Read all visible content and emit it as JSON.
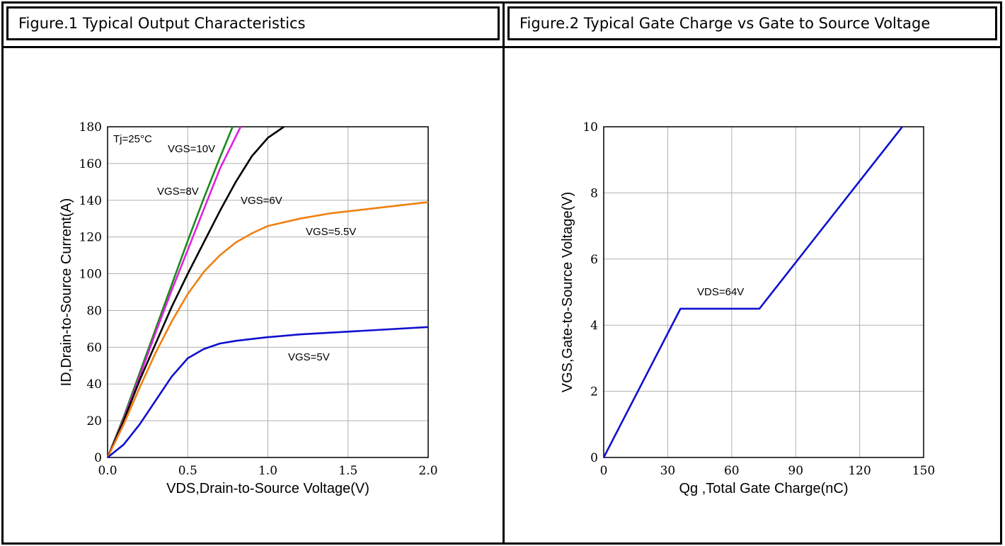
{
  "figures": [
    {
      "title": "Figure.1 Typical Output Characteristics"
    },
    {
      "title": "Figure.2 Typical Gate Charge vs Gate to Source Voltage"
    }
  ],
  "chart_data": [
    {
      "type": "line",
      "title": "Figure.1 Typical Output Characteristics",
      "xlabel": "VDS,Drain-to-Source Voltage(V)",
      "ylabel": "ID,Drain-to-Source Current(A)",
      "xlim": [
        0,
        2.0
      ],
      "ylim": [
        0,
        180
      ],
      "xticks": [
        "0.0",
        "0.5",
        "1.0",
        "1.5",
        "2.0"
      ],
      "yticks": [
        "0",
        "20",
        "40",
        "60",
        "80",
        "100",
        "120",
        "140",
        "160",
        "180"
      ],
      "grid": true,
      "annotations": [
        "Tj=25°C"
      ],
      "series": [
        {
          "name": "VGS=10V",
          "color": "#1a8a1a",
          "x": [
            0,
            0.1,
            0.2,
            0.3,
            0.4,
            0.5,
            0.6,
            0.7,
            0.78
          ],
          "y": [
            0,
            22,
            46,
            70,
            94,
            118,
            141,
            163,
            180
          ]
        },
        {
          "name": "VGS=8V",
          "color": "#e020e0",
          "x": [
            0,
            0.1,
            0.2,
            0.3,
            0.4,
            0.5,
            0.6,
            0.7,
            0.83
          ],
          "y": [
            0,
            21,
            44,
            68,
            91,
            113,
            135,
            157,
            180
          ]
        },
        {
          "name": "VGS=6V",
          "color": "#000000",
          "x": [
            0,
            0.1,
            0.2,
            0.3,
            0.4,
            0.5,
            0.6,
            0.7,
            0.8,
            0.9,
            1.0,
            1.1
          ],
          "y": [
            0,
            20,
            42,
            62,
            82,
            100,
            117,
            134,
            150,
            164,
            174,
            180
          ]
        },
        {
          "name": "VGS=5.5V",
          "color": "#f08010",
          "x": [
            0,
            0.1,
            0.2,
            0.3,
            0.4,
            0.5,
            0.6,
            0.7,
            0.8,
            0.9,
            1.0,
            1.2,
            1.4,
            1.6,
            1.8,
            2.0
          ],
          "y": [
            0,
            18,
            38,
            57,
            74,
            89,
            101,
            110,
            117,
            122,
            126,
            130,
            133,
            135,
            137,
            139
          ]
        },
        {
          "name": "VGS=5V",
          "color": "#1010d0",
          "x": [
            0,
            0.1,
            0.2,
            0.3,
            0.4,
            0.5,
            0.6,
            0.7,
            0.8,
            1.0,
            1.2,
            1.5,
            2.0
          ],
          "y": [
            0,
            7,
            18,
            31,
            44,
            54,
            59,
            62,
            63.5,
            65.5,
            67,
            68.5,
            71
          ]
        }
      ]
    },
    {
      "type": "line",
      "title": "Figure.2 Typical Gate Charge vs Gate to Source Voltage",
      "xlabel": "Qg ,Total Gate Charge(nC)",
      "ylabel": "VGS,Gate-to-Source Voltage(V)",
      "xlim": [
        0,
        150
      ],
      "ylim": [
        0,
        10
      ],
      "xticks": [
        "0",
        "30",
        "60",
        "90",
        "120",
        "150"
      ],
      "yticks": [
        "0",
        "2",
        "4",
        "6",
        "8",
        "10"
      ],
      "grid": true,
      "annotations": [
        "VDS=64V"
      ],
      "series": [
        {
          "color": "#1010d0",
          "x": [
            0,
            36,
            73,
            140
          ],
          "y": [
            0,
            4.5,
            4.5,
            10
          ]
        }
      ]
    }
  ]
}
